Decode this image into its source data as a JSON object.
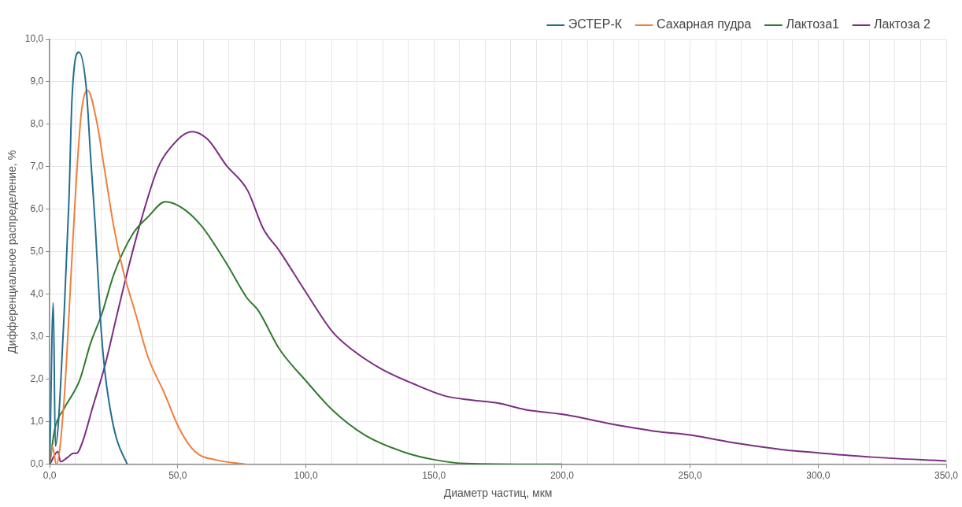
{
  "chart_data": {
    "type": "line",
    "xlabel": "Диаметр частиц, мкм",
    "ylabel": "Дифференциальное распределение, %",
    "legend": "top right",
    "grid": true,
    "marker": "none",
    "line_style": "solid",
    "xlim": [
      0,
      350
    ],
    "ylim": [
      0,
      10
    ],
    "xticks": [
      {
        "value": 0,
        "label": "0,0"
      },
      {
        "value": 10,
        "label": null
      },
      {
        "value": 20,
        "label": null
      },
      {
        "value": 30,
        "label": null
      },
      {
        "value": 40,
        "label": null
      },
      {
        "value": 50,
        "label": "50,0"
      },
      {
        "value": 60,
        "label": null
      },
      {
        "value": 70,
        "label": null
      },
      {
        "value": 80,
        "label": null
      },
      {
        "value": 90,
        "label": null
      },
      {
        "value": 100,
        "label": "100,0"
      },
      {
        "value": 110,
        "label": null
      },
      {
        "value": 120,
        "label": null
      },
      {
        "value": 130,
        "label": null
      },
      {
        "value": 140,
        "label": null
      },
      {
        "value": 150,
        "label": "150,0"
      },
      {
        "value": 160,
        "label": null
      },
      {
        "value": 170,
        "label": null
      },
      {
        "value": 180,
        "label": null
      },
      {
        "value": 190,
        "label": null
      },
      {
        "value": 200,
        "label": "200,0"
      },
      {
        "value": 210,
        "label": null
      },
      {
        "value": 220,
        "label": null
      },
      {
        "value": 230,
        "label": null
      },
      {
        "value": 240,
        "label": null
      },
      {
        "value": 250,
        "label": "250,0"
      },
      {
        "value": 260,
        "label": null
      },
      {
        "value": 270,
        "label": null
      },
      {
        "value": 280,
        "label": null
      },
      {
        "value": 290,
        "label": null
      },
      {
        "value": 300,
        "label": "300,0"
      },
      {
        "value": 310,
        "label": null
      },
      {
        "value": 320,
        "label": null
      },
      {
        "value": 330,
        "label": null
      },
      {
        "value": 340,
        "label": null
      },
      {
        "value": 350,
        "label": "350,0"
      }
    ],
    "yticks": [
      {
        "value": 0,
        "label": "0,0"
      },
      {
        "value": 1,
        "label": "1,0"
      },
      {
        "value": 2,
        "label": "2,0"
      },
      {
        "value": 3,
        "label": "3,0"
      },
      {
        "value": 4,
        "label": "4,0"
      },
      {
        "value": 5,
        "label": "5,0"
      },
      {
        "value": 6,
        "label": "6,0"
      },
      {
        "value": 7,
        "label": "7,0"
      },
      {
        "value": 8,
        "label": "8,0"
      },
      {
        "value": 9,
        "label": "9,0"
      },
      {
        "value": 10,
        "label": "10,0"
      }
    ],
    "series": [
      {
        "name": "ЭСТЕР-К",
        "color": "#236e8f",
        "x": [
          0,
          1.4,
          2.2,
          5.6,
          7.5,
          8.7,
          11.4,
          14.2,
          16,
          17.8,
          19.7,
          21.5,
          23.9,
          26.3,
          30.3
        ],
        "values": [
          0,
          3.8,
          0.43,
          3.5,
          6.2,
          8.6,
          9.7,
          8.9,
          7.2,
          5.6,
          3.5,
          2.2,
          1.2,
          0.56,
          0
        ]
      },
      {
        "name": "Сахарная пудра",
        "color": "#f07f3c",
        "x": [
          0,
          1,
          2.6,
          5.6,
          8.1,
          9.9,
          12.3,
          14.8,
          18.4,
          21.5,
          25.1,
          28.7,
          33.6,
          38.4,
          44.5,
          50.6,
          56.7,
          65.2,
          76.7
        ],
        "values": [
          0,
          0.43,
          0,
          1.5,
          4.2,
          6.2,
          8.25,
          8.8,
          8.05,
          6.9,
          5.56,
          4.55,
          3.53,
          2.52,
          1.71,
          0.84,
          0.3,
          0.1,
          0
        ]
      },
      {
        "name": "Лактоза1",
        "color": "#317a2e",
        "x": [
          0,
          2,
          5.6,
          11.7,
          16,
          20.3,
          25.1,
          32.4,
          38.5,
          45.1,
          51.8,
          59.1,
          68.9,
          77.2,
          81.3,
          89.7,
          100.1,
          110.5,
          123,
          138.7,
          150.1,
          162.6,
          200
        ],
        "values": [
          0,
          0.84,
          1.31,
          1.98,
          2.86,
          3.53,
          4.48,
          5.42,
          5.83,
          6.18,
          6.03,
          5.62,
          4.74,
          3.9,
          3.63,
          2.71,
          1.96,
          1.27,
          0.69,
          0.28,
          0.11,
          0.02,
          0
        ]
      },
      {
        "name": "Лактоза 2",
        "color": "#7b2d84",
        "x": [
          0,
          3.2,
          4.2,
          6.9,
          9.3,
          10.5,
          13,
          16.6,
          21.5,
          26.3,
          31.2,
          36.1,
          42.2,
          47,
          55.5,
          61.6,
          68.9,
          77.2,
          83.4,
          89.7,
          100.1,
          110.5,
          117.8,
          129.3,
          141.8,
          154.3,
          164.7,
          175.1,
          185.5,
          202.2,
          216.8,
          237.6,
          250,
          268.8,
          285.5,
          300,
          320.9,
          350
        ],
        "values": [
          0,
          0.3,
          0.06,
          0.16,
          0.26,
          0.26,
          0.56,
          1.31,
          2.31,
          3.53,
          4.74,
          5.83,
          6.97,
          7.44,
          7.83,
          7.65,
          7.04,
          6.45,
          5.54,
          5.02,
          4.04,
          3.11,
          2.71,
          2.25,
          1.9,
          1.61,
          1.51,
          1.44,
          1.29,
          1.16,
          0.98,
          0.77,
          0.69,
          0.49,
          0.35,
          0.27,
          0.17,
          0.08
        ]
      }
    ]
  }
}
